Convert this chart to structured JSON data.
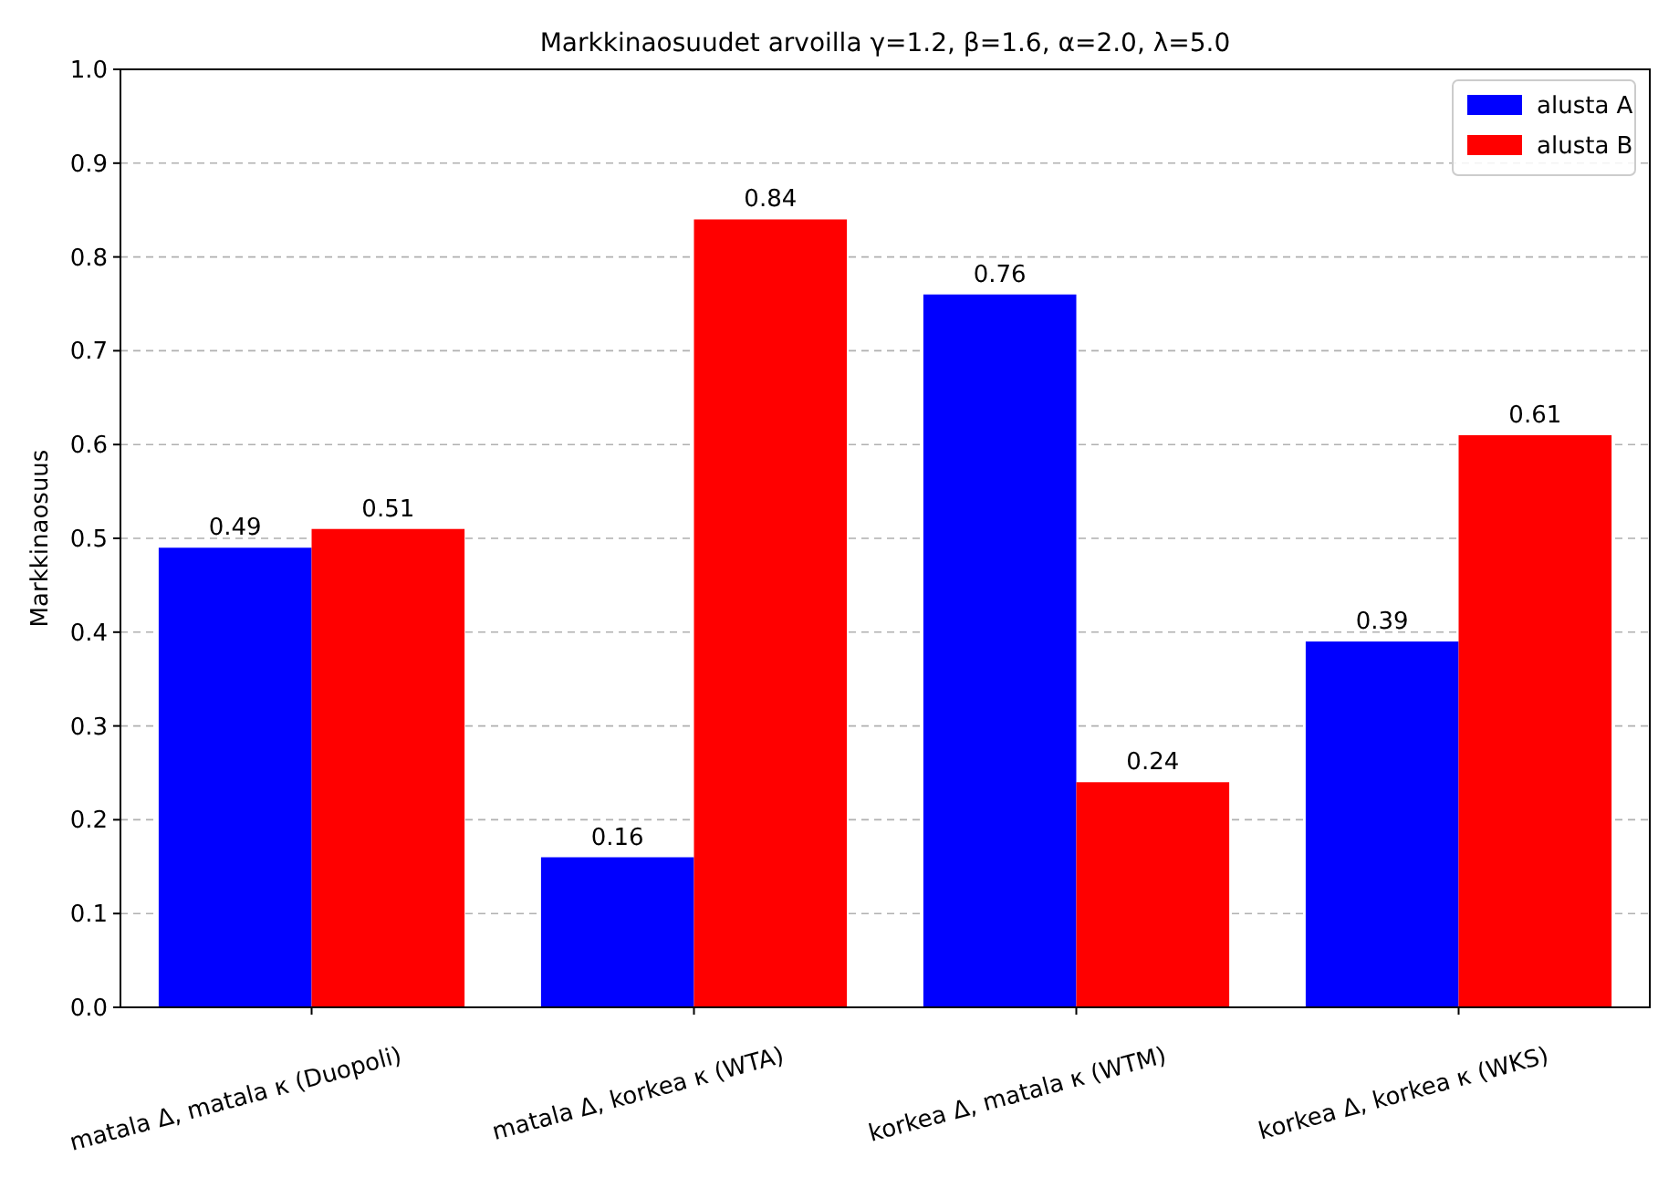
{
  "chart_data": {
    "type": "bar",
    "title": "Markkinaosuudet arvoilla γ=1.2, β=1.6, α=2.0, λ=5.0",
    "ylabel": "Markkinaosuus",
    "categories": [
      "matala Δ, matala κ (Duopoli)",
      "matala Δ, korkea κ (WTA)",
      "korkea Δ, matala κ (WTM)",
      "korkea Δ, korkea κ (WKS)"
    ],
    "series": [
      {
        "name": "alusta A",
        "color": "#0000ff",
        "values": [
          0.49,
          0.16,
          0.76,
          0.39
        ]
      },
      {
        "name": "alusta B",
        "color": "#ff0000",
        "values": [
          0.51,
          0.84,
          0.24,
          0.61
        ]
      }
    ],
    "ylim": [
      0,
      1
    ],
    "yticks": [
      {
        "value": 0,
        "label": "0.0"
      },
      0.1,
      0.2,
      0.3,
      0.4,
      0.5,
      0.6,
      0.7,
      0.8,
      0.9,
      {
        "value": 1,
        "label": "1.0"
      }
    ],
    "grid": "y",
    "legend": "top right",
    "data_labels": true
  }
}
